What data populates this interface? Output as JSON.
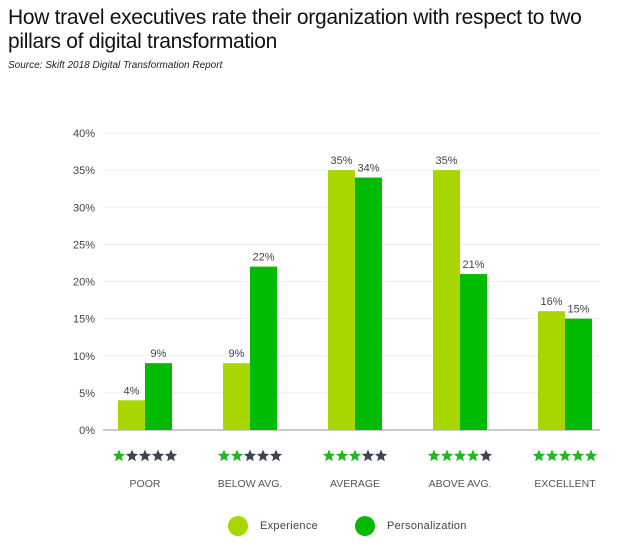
{
  "chart_data": {
    "type": "bar",
    "title": "How travel executives rate their organization with respect to two pillars of digital transformation",
    "subtitle": "Source: Skift 2018 Digital Transformation Report",
    "categories": [
      "POOR",
      "BELOW AVG.",
      "AVERAGE",
      "ABOVE AVG.",
      "EXCELLENT"
    ],
    "category_stars": [
      1,
      2,
      3,
      4,
      5
    ],
    "series": [
      {
        "name": "Experience",
        "values": [
          4,
          9,
          35,
          35,
          16
        ],
        "color": "#a8d600"
      },
      {
        "name": "Personalization",
        "values": [
          9,
          22,
          34,
          21,
          15
        ],
        "color": "#00bb00"
      }
    ],
    "ylim": [
      0,
      40
    ],
    "yticks": [
      "0%",
      "5%",
      "10%",
      "15%",
      "20%",
      "25%",
      "30%",
      "35%",
      "40%"
    ],
    "grid": true,
    "legend": "bottom",
    "star_colors": {
      "filled": "#22b822",
      "empty": "#3d4550"
    }
  }
}
